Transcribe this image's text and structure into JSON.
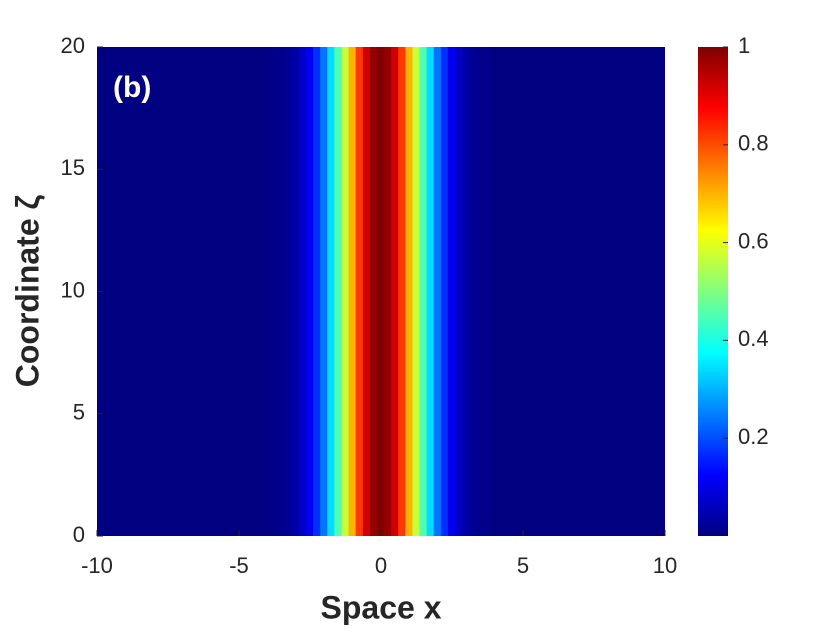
{
  "chart_data": {
    "type": "heatmap",
    "xlabel": "Space x",
    "ylabel": "Coordinate ζ",
    "annotation": "(b)",
    "colormap": "jet",
    "x": [
      -10,
      -9.75,
      -9.5,
      -9.25,
      -9,
      -8.75,
      -8.5,
      -8.25,
      -8,
      -7.75,
      -7.5,
      -7.25,
      -7,
      -6.75,
      -6.5,
      -6.25,
      -6,
      -5.75,
      -5.5,
      -5.25,
      -5,
      -4.75,
      -4.5,
      -4.25,
      -4,
      -3.75,
      -3.5,
      -3.25,
      -3,
      -2.75,
      -2.5,
      -2.25,
      -2,
      -1.75,
      -1.5,
      -1.25,
      -1,
      -0.75,
      -0.5,
      -0.25,
      0,
      0.25,
      0.5,
      0.75,
      1,
      1.25,
      1.5,
      1.75,
      2,
      2.25,
      2.5,
      2.75,
      3,
      3.25,
      3.5,
      3.75,
      4,
      4.25,
      4.5,
      4.75,
      5,
      5.25,
      5.5,
      5.75,
      6,
      6.25,
      6.5,
      6.75,
      7,
      7.25,
      7.5,
      7.75,
      8,
      8.25,
      8.5,
      8.75,
      9,
      9.25,
      9.5,
      9.75,
      10
    ],
    "values": [
      0,
      0,
      0,
      0,
      0,
      0,
      0,
      0,
      0,
      0,
      0,
      0,
      0,
      0,
      0,
      0,
      0,
      0,
      0,
      0,
      0,
      0,
      0,
      0,
      0,
      0.01,
      0.01,
      0.02,
      0.04,
      0.07,
      0.11,
      0.17,
      0.24,
      0.34,
      0.45,
      0.57,
      0.7,
      0.82,
      0.92,
      0.98,
      1,
      0.98,
      0.92,
      0.82,
      0.7,
      0.57,
      0.45,
      0.34,
      0.24,
      0.17,
      0.11,
      0.07,
      0.04,
      0.02,
      0.01,
      0.01,
      0,
      0,
      0,
      0,
      0,
      0,
      0,
      0,
      0,
      0,
      0,
      0,
      0,
      0,
      0,
      0,
      0,
      0,
      0,
      0,
      0,
      0,
      0,
      0,
      0
    ],
    "xlim": [
      -10,
      10
    ],
    "xticks": [
      -10,
      -5,
      0,
      5,
      10
    ],
    "ylim": [
      0,
      20
    ],
    "yticks": [
      0,
      5,
      10,
      15,
      20
    ],
    "clim": [
      0,
      1
    ],
    "cticks": [
      0.2,
      0.4,
      0.6,
      0.8,
      1
    ]
  }
}
